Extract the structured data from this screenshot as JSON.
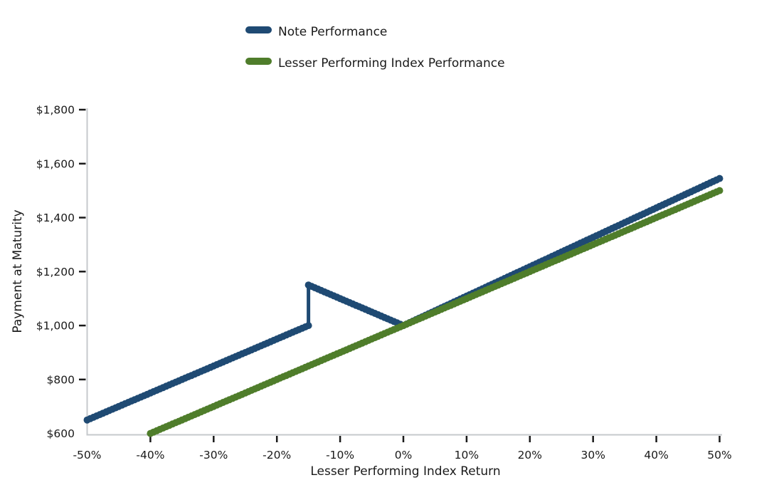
{
  "chart_data": {
    "type": "line",
    "title": "",
    "xlabel": "Lesser Performing Index Return",
    "ylabel": "Payment at Maturity",
    "xlim": [
      -0.5,
      0.5
    ],
    "ylim": [
      600,
      1800
    ],
    "grid": false,
    "legend_position": "top-center",
    "x_tick_values": [
      -0.5,
      -0.4,
      -0.3,
      -0.2,
      -0.1,
      0.0,
      0.1,
      0.2,
      0.3,
      0.4,
      0.5
    ],
    "x_tick_labels": [
      "-50%",
      "-40%",
      "-30%",
      "-20%",
      "-10%",
      "0%",
      "10%",
      "20%",
      "30%",
      "40%",
      "50%"
    ],
    "y_tick_values": [
      600,
      800,
      1000,
      1200,
      1400,
      1600,
      1800
    ],
    "y_tick_labels": [
      "$600",
      "$800",
      "$1,000",
      "$1,200",
      "$1,400",
      "$1,600",
      "$1,800"
    ],
    "series": [
      {
        "name": "Note Performance",
        "color": "#1f4a73",
        "points": [
          [
            -0.5,
            650
          ],
          [
            -0.15,
            1000
          ],
          [
            -0.15,
            1150
          ],
          [
            0.0,
            1000
          ],
          [
            0.5,
            1545
          ]
        ]
      },
      {
        "name": "Lesser Performing Index Performance",
        "color": "#4f7d2b",
        "points": [
          [
            -0.4,
            600
          ],
          [
            0.5,
            1500
          ]
        ]
      }
    ],
    "colors": {
      "axis_spine": "#c6c9cc",
      "tick": "#1a1a1a",
      "text": "#1a1a1a",
      "background": "#ffffff"
    }
  }
}
